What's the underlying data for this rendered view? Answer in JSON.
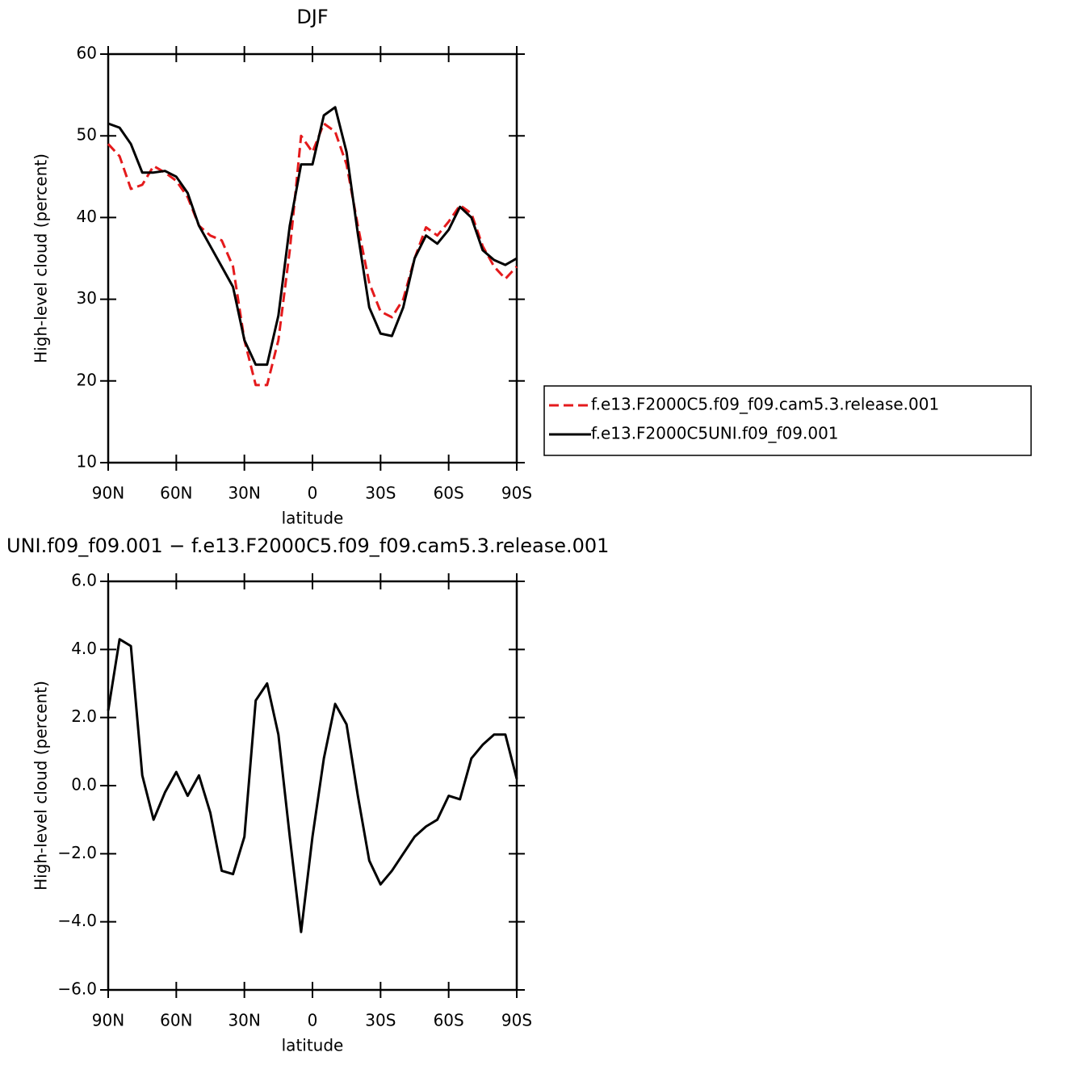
{
  "chart_data": [
    {
      "type": "line",
      "title": "DJF",
      "xlabel": "latitude",
      "ylabel": "High-level cloud (percent)",
      "x": [
        90,
        85,
        80,
        75,
        70,
        65,
        60,
        55,
        50,
        45,
        40,
        35,
        30,
        25,
        20,
        15,
        10,
        5,
        0,
        -5,
        -10,
        -15,
        -20,
        -25,
        -30,
        -35,
        -40,
        -45,
        -50,
        -55,
        -60,
        -65,
        -70,
        -75,
        -80,
        -85,
        -90
      ],
      "series": [
        {
          "name": "f.e13.F2000C5.f09_f09.cam5.3.release.001",
          "color": "#e41a1c",
          "linestyle": "dashed",
          "values": [
            49,
            47.5,
            43.5,
            44,
            46.3,
            45.5,
            44.5,
            42.5,
            39,
            37.8,
            37.2,
            34,
            25,
            19.5,
            19.5,
            25,
            36,
            50,
            48,
            51.5,
            50.5,
            46.5,
            39,
            32,
            28.5,
            27.8,
            30,
            35,
            38.8,
            37.8,
            39.5,
            41.5,
            40.5,
            36.5,
            34,
            32.5,
            34
          ]
        },
        {
          "name": "f.e13.F2000C5UNI.f09_f09.001",
          "color": "#000000",
          "linestyle": "solid",
          "values": [
            51.5,
            51,
            49,
            45.5,
            45.5,
            45.7,
            45,
            43,
            39,
            36.5,
            34,
            31.5,
            25,
            22,
            22,
            28,
            39,
            46.5,
            46.5,
            52.5,
            53.5,
            48,
            38,
            29,
            25.8,
            25.5,
            29,
            35,
            37.8,
            36.8,
            38.5,
            41.3,
            40,
            36,
            34.8,
            34.2,
            35
          ]
        }
      ],
      "xlim": [
        90,
        -90
      ],
      "xticks": [
        {
          "value": 90,
          "label": "90N"
        },
        {
          "value": 60,
          "label": "60N"
        },
        {
          "value": 30,
          "label": "30N"
        },
        0,
        {
          "value": -30,
          "label": "30S"
        },
        {
          "value": -60,
          "label": "60S"
        },
        {
          "value": -90,
          "label": "90S"
        }
      ],
      "ylim": [
        10,
        60
      ],
      "yticks": [
        10,
        20,
        30,
        40,
        50,
        60
      ],
      "legend": "right"
    },
    {
      "type": "line",
      "title": "UNI.f09_f09.001 − f.e13.F2000C5.f09_f09.cam5.3.release.001",
      "xlabel": "latitude",
      "ylabel": "High-level cloud (percent)",
      "x": [
        90,
        85,
        80,
        75,
        70,
        65,
        60,
        55,
        50,
        45,
        40,
        35,
        30,
        25,
        20,
        15,
        10,
        5,
        0,
        -5,
        -10,
        -15,
        -20,
        -25,
        -30,
        -35,
        -40,
        -45,
        -50,
        -55,
        -60,
        -65,
        -70,
        -75,
        -80,
        -85,
        -90
      ],
      "series": [
        {
          "color": "#000000",
          "linestyle": "solid",
          "values": [
            2.2,
            4.3,
            4.1,
            0.3,
            -1.0,
            -0.2,
            0.4,
            -0.3,
            0.3,
            -0.8,
            -2.5,
            -2.6,
            -1.5,
            2.5,
            3.0,
            1.5,
            -1.5,
            -4.3,
            -1.5,
            0.8,
            2.4,
            1.8,
            -0.3,
            -2.2,
            -2.9,
            -2.5,
            -2.0,
            -1.5,
            -1.2,
            -1.0,
            -0.3,
            -0.4,
            0.8,
            1.2,
            1.5,
            1.5,
            0.2
          ]
        }
      ],
      "xlim": [
        90,
        -90
      ],
      "xticks": [
        {
          "value": 90,
          "label": "90N"
        },
        {
          "value": 60,
          "label": "60N"
        },
        {
          "value": 30,
          "label": "30N"
        },
        0,
        {
          "value": -30,
          "label": "30S"
        },
        {
          "value": -60,
          "label": "60S"
        },
        {
          "value": -90,
          "label": "90S"
        }
      ],
      "ylim": [
        -6,
        6
      ],
      "yticks": [
        {
          "value": -6,
          "label": "−6.0"
        },
        {
          "value": -4,
          "label": "−4.0"
        },
        {
          "value": -2,
          "label": "−2.0"
        },
        {
          "value": 0,
          "label": "0.0"
        },
        {
          "value": 2,
          "label": "2.0"
        },
        {
          "value": 4,
          "label": "4.0"
        },
        {
          "value": 6,
          "label": "6.0"
        }
      ]
    }
  ]
}
